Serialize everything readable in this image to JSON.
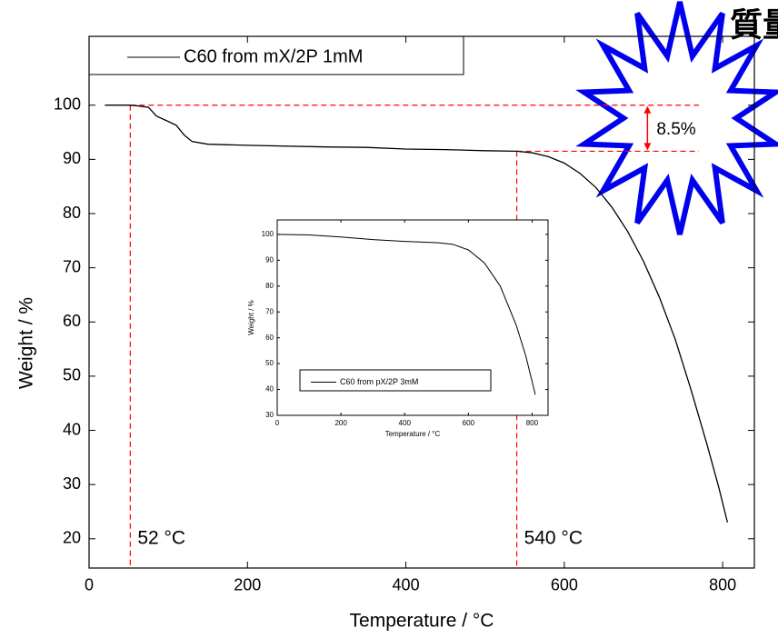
{
  "chart_data": [
    {
      "type": "line",
      "stamp": "質量",
      "x_label": "Temperature / °C",
      "y_label": "Weight / %",
      "x": [
        20,
        50,
        60,
        75,
        85,
        100,
        110,
        120,
        130,
        150,
        200,
        300,
        350,
        400,
        450,
        500,
        540,
        560,
        580,
        600,
        620,
        640,
        660,
        680,
        700,
        720,
        740,
        760,
        780,
        795,
        806
      ],
      "series": [
        {
          "name": "C60 from mX/2P 1mM",
          "color": "#000000",
          "values": [
            100,
            100,
            99.9,
            99.6,
            98,
            97,
            96.3,
            94.5,
            93.3,
            92.8,
            92.6,
            92.3,
            92.2,
            91.9,
            91.8,
            91.6,
            91.5,
            91.2,
            90.5,
            89.3,
            87.4,
            84.8,
            81.2,
            76.7,
            71.2,
            64.6,
            56.8,
            47.5,
            37.5,
            29.5,
            23
          ]
        }
      ],
      "xlim": [
        0,
        840
      ],
      "ylim": [
        14.6,
        112.7
      ],
      "xticks": [
        0,
        200,
        400,
        600,
        800
      ],
      "yticks": [
        20,
        30,
        40,
        50,
        60,
        70,
        80,
        90,
        100
      ],
      "markers": [
        {
          "x": 52,
          "label": "52 °C"
        },
        {
          "x": 540,
          "label": "540 °C"
        }
      ],
      "levels": [
        100,
        91.5
      ],
      "level_label": "8.5%"
    },
    {
      "type": "line",
      "x_label": "Temperature / °C",
      "y_label": "Weight / %",
      "x": [
        0,
        100,
        200,
        300,
        400,
        500,
        550,
        600,
        650,
        700,
        750,
        780,
        800,
        810
      ],
      "series": [
        {
          "name": "C60 from pX/2P 3mM",
          "color": "#000000",
          "values": [
            100,
            99.8,
            99,
            98,
            97.3,
            96.8,
            96.2,
            94,
            89,
            80,
            65,
            53,
            43,
            38
          ]
        }
      ],
      "xlim": [
        0,
        850
      ],
      "ylim": [
        30,
        105.6
      ],
      "xticks": [
        0,
        200,
        400,
        600,
        800
      ],
      "yticks": [
        30,
        40,
        50,
        60,
        70,
        80,
        90,
        100
      ]
    }
  ]
}
